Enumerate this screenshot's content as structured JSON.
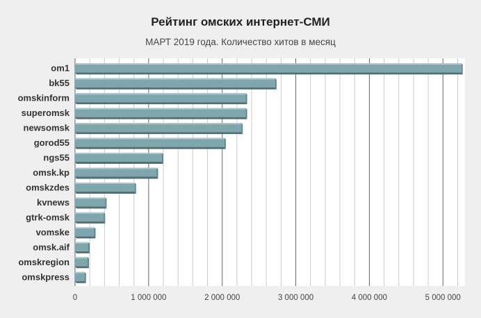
{
  "chart_data": {
    "type": "bar",
    "orientation": "horizontal",
    "title": "Рейтинг омских интернет-СМИ",
    "subtitle": "МАРТ 2019 года. Количество хитов в месяц",
    "categories": [
      "om1",
      "bk55",
      "omskinform",
      "superomsk",
      "newsomsk",
      "gorod55",
      "ngs55",
      "omsk.kp",
      "omskzdes",
      "kvnews",
      "gtrk-omsk",
      "vomske",
      "omsk.aif",
      "omskregion",
      "omskpress"
    ],
    "values": [
      5250000,
      2720000,
      2320000,
      2320000,
      2260000,
      2030000,
      1180000,
      1110000,
      810000,
      410000,
      390000,
      260000,
      180000,
      170000,
      130000
    ],
    "xlim": [
      0,
      5300000
    ],
    "xticks": [
      0,
      1000000,
      2000000,
      3000000,
      4000000,
      5000000
    ],
    "xtick_labels": [
      "0",
      "1 000 000",
      "2 000 000",
      "3 000 000",
      "4 000 000",
      "5 000 000"
    ],
    "grid": true,
    "colors": {
      "bar_front": "#7fa6ad",
      "bar_top": "#a9c6cb",
      "bar_side": "#5f868d",
      "bar_bottom": "#4f6f75",
      "plot_bg": "#ffffff",
      "grid": "#666666",
      "minor_grid": "#cccccc"
    }
  }
}
